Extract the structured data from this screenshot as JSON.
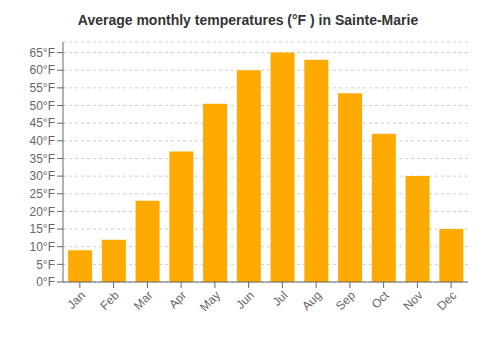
{
  "chart_data": {
    "type": "bar",
    "title": "Average monthly temperatures (°F ) in Sainte-Marie",
    "categories": [
      "Jan",
      "Feb",
      "Mar",
      "Apr",
      "May",
      "Jun",
      "Jul",
      "Aug",
      "Sep",
      "Oct",
      "Nov",
      "Dec"
    ],
    "values": [
      9,
      12,
      23,
      37,
      50.5,
      60,
      65,
      63,
      53.5,
      42,
      30,
      15
    ],
    "color": "#FFAA00",
    "ylim": [
      0,
      68
    ],
    "yticks": [
      {
        "value": 0,
        "label": "0°F"
      },
      {
        "value": 5,
        "label": "5°F"
      },
      {
        "value": 10,
        "label": "10°F"
      },
      {
        "value": 15,
        "label": "15°F"
      },
      {
        "value": 20,
        "label": "20°F"
      },
      {
        "value": 25,
        "label": "25°F"
      },
      {
        "value": 30,
        "label": "30°F"
      },
      {
        "value": 35,
        "label": "35°F"
      },
      {
        "value": 40,
        "label": "40°F"
      },
      {
        "value": 45,
        "label": "45°F"
      },
      {
        "value": 50,
        "label": "50°F"
      },
      {
        "value": 55,
        "label": "55°F"
      },
      {
        "value": 60,
        "label": "60°F"
      },
      {
        "value": 65,
        "label": "65°F"
      }
    ],
    "grid": true
  }
}
